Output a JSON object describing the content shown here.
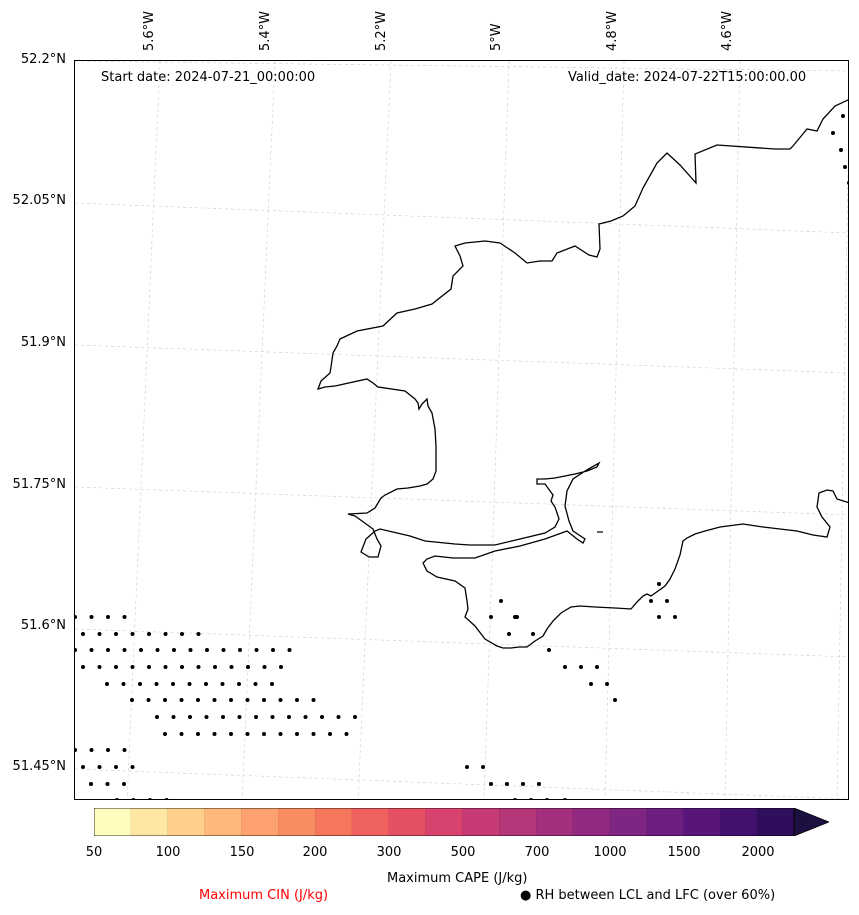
{
  "map": {
    "start_date_label": "Start date: 2024-07-21_00:00:00",
    "valid_date_label": "Valid_date: 2024-07-22T15:00:00.00",
    "latitude_labels": [
      "52.2°N",
      "52.05°N",
      "51.9°N",
      "51.75°N",
      "51.6°N",
      "51.45°N"
    ],
    "longitude_labels": [
      "5.6°W",
      "5.4°W",
      "5.2°W",
      "5°W",
      "4.8°W",
      "4.6°W"
    ]
  },
  "colorbar": {
    "label": "Maximum CAPE (J/kg)",
    "tick_labels": [
      "50",
      "100",
      "150",
      "200",
      "300",
      "500",
      "700",
      "1000",
      "1500",
      "2000"
    ],
    "colors": [
      "#fefdbf",
      "#fee7a2",
      "#fed08a",
      "#feb97a",
      "#fda26f",
      "#fa8c62",
      "#f6765b",
      "#ef6260",
      "#e55064",
      "#d7426e",
      "#c63b75",
      "#b53679",
      "#a3307e",
      "#912a80",
      "#7f2582",
      "#6c1f81",
      "#58167b",
      "#431170",
      "#2f0f5c",
      "#1c1040"
    ]
  },
  "footer": {
    "cin_label": "Maximum CIN (J/kg)",
    "rh_label": "● RH between LCL and LFC (over 60%)",
    "cin_color": "#ff0000"
  }
}
